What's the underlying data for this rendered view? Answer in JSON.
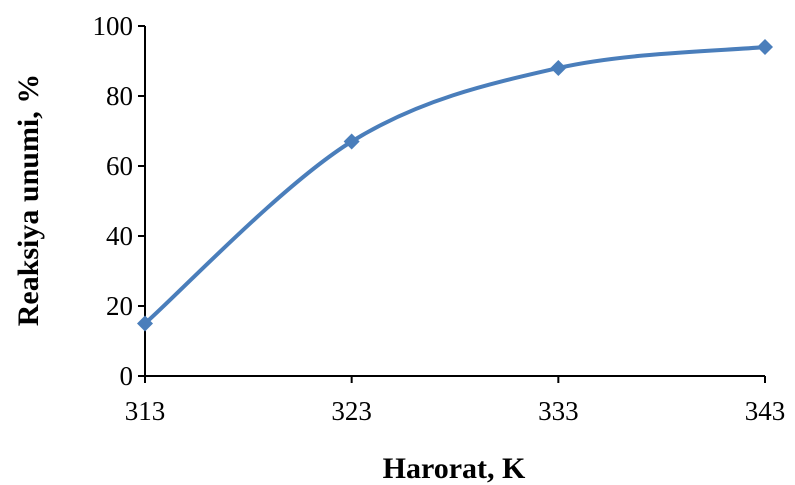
{
  "chart_data": {
    "type": "line",
    "smooth": true,
    "x": [
      313,
      323,
      333,
      343
    ],
    "series": [
      {
        "values": [
          15,
          67,
          88,
          94
        ],
        "color": "#4a7ebb",
        "marker": "diamond"
      }
    ],
    "xlabel": "Harorat, K",
    "ylabel": "Reaksiya unumi, %",
    "xlim": [
      313,
      343
    ],
    "ylim": [
      0,
      100
    ],
    "xticks": [
      313,
      323,
      333,
      343
    ],
    "yticks": [
      0,
      20,
      40,
      60,
      80,
      100
    ],
    "grid": false,
    "legend": "none"
  }
}
